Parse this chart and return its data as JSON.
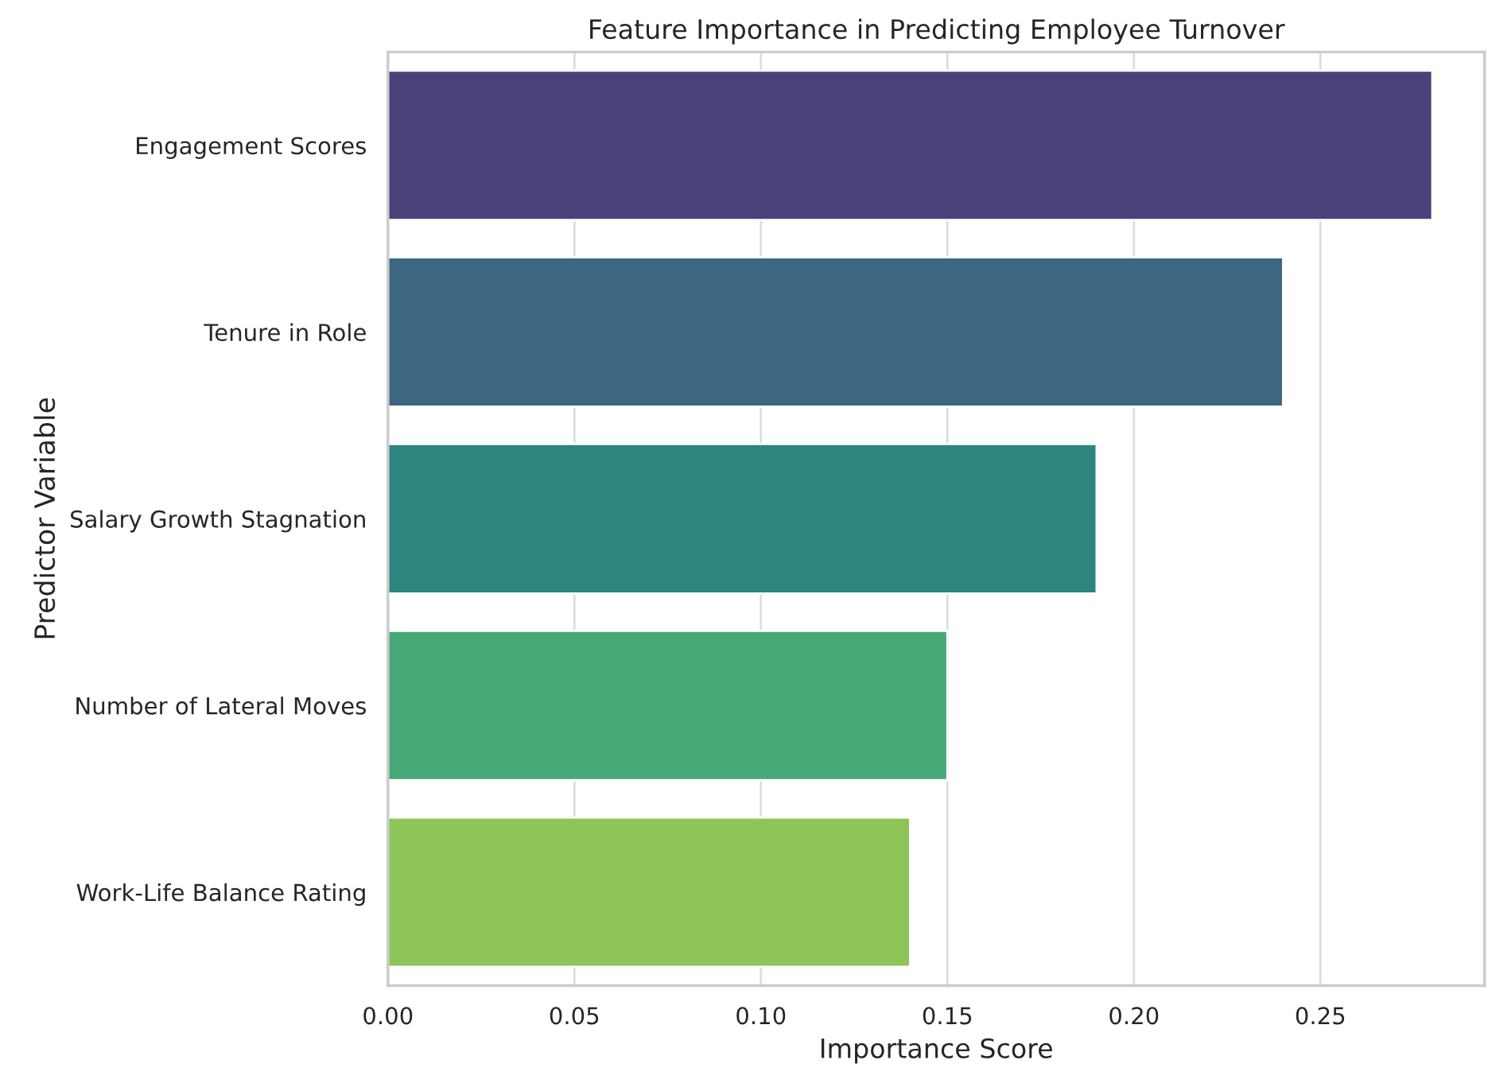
{
  "chart_data": {
    "type": "bar",
    "orientation": "horizontal",
    "title": "Feature Importance in Predicting Employee Turnover",
    "xlabel": "Importance Score",
    "ylabel": "Predictor Variable",
    "categories": [
      "Engagement Scores",
      "Tenure in Role",
      "Salary Growth Stagnation",
      "Number of Lateral Moves",
      "Work-Life Balance Rating"
    ],
    "values": [
      0.28,
      0.24,
      0.19,
      0.15,
      0.14
    ],
    "colors": [
      "#48417a",
      "#3c6682",
      "#2e8580",
      "#48a878",
      "#8dc558"
    ],
    "xlim": [
      0,
      0.294
    ],
    "xticks": [
      {
        "value": 0,
        "label": "0.00"
      },
      {
        "value": 0.05,
        "label": "0.05"
      },
      {
        "value": 0.1,
        "label": "0.10"
      },
      {
        "value": 0.15,
        "label": "0.15"
      },
      {
        "value": 0.2,
        "label": "0.20"
      },
      {
        "value": 0.25,
        "label": "0.25"
      }
    ],
    "grid": "x",
    "legend": false
  }
}
